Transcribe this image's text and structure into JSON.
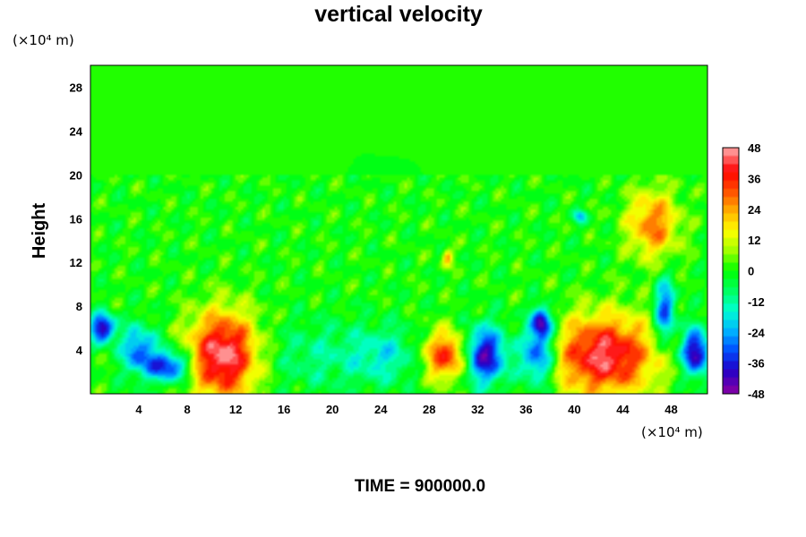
{
  "chart_data": {
    "type": "heatmap",
    "title": "vertical velocity",
    "ylabel": "Height",
    "y_unit_label": "(×10⁴ m)",
    "x_unit_label": "(×10⁴ m)",
    "xticks": [
      "4",
      "8",
      "12",
      "16",
      "20",
      "24",
      "28",
      "32",
      "36",
      "40",
      "44",
      "48"
    ],
    "yticks": [
      "4",
      "8",
      "12",
      "16",
      "20",
      "24",
      "28"
    ],
    "xlim": [
      0,
      51
    ],
    "ylim": [
      0,
      30
    ],
    "colorbar": {
      "ticks": [
        "48",
        "36",
        "24",
        "12",
        "0",
        "-12",
        "-24",
        "-36",
        "-48"
      ],
      "range": [
        -48,
        48
      ],
      "colors_low_to_high": [
        "#7a00a8",
        "#2000c8",
        "#0050ff",
        "#00b8ff",
        "#00ffd0",
        "#00ff60",
        "#00ff00",
        "#a0ff00",
        "#ffff00",
        "#ffb000",
        "#ff5000",
        "#ff0000",
        "#ff9090"
      ]
    },
    "background_value": 0,
    "features": [
      {
        "x": 11,
        "y": 3.5,
        "value": 48,
        "sx": 2.0,
        "sy": 2.8
      },
      {
        "x": 42.5,
        "y": 3.5,
        "value": 44,
        "sx": 3.0,
        "sy": 2.6
      },
      {
        "x": 29.5,
        "y": 3.5,
        "value": 38,
        "sx": 1.4,
        "sy": 1.6
      },
      {
        "x": 32.5,
        "y": 3.5,
        "value": -44,
        "sx": 1.3,
        "sy": 1.8
      },
      {
        "x": 37,
        "y": 3.5,
        "value": -36,
        "sx": 1.0,
        "sy": 1.8
      },
      {
        "x": 37.3,
        "y": 6.5,
        "value": -42,
        "sx": 0.6,
        "sy": 1.0
      },
      {
        "x": 6.5,
        "y": 2.5,
        "value": -38,
        "sx": 1.2,
        "sy": 1.0
      },
      {
        "x": 4,
        "y": 4.0,
        "value": -30,
        "sx": 1.0,
        "sy": 1.5
      },
      {
        "x": 1.0,
        "y": 6.0,
        "value": -44,
        "sx": 0.7,
        "sy": 0.9
      },
      {
        "x": 50.0,
        "y": 3.8,
        "value": -46,
        "sx": 0.8,
        "sy": 1.5
      },
      {
        "x": 47.5,
        "y": 7.5,
        "value": -34,
        "sx": 0.6,
        "sy": 2.0
      },
      {
        "x": 46.5,
        "y": 15.5,
        "value": 28,
        "sx": 1.5,
        "sy": 2.2
      },
      {
        "x": 29.5,
        "y": 12.5,
        "value": 22,
        "sx": 0.3,
        "sy": 0.6
      },
      {
        "x": 40.5,
        "y": 16.2,
        "value": -22,
        "sx": 0.4,
        "sy": 0.4
      },
      {
        "x": 19,
        "y": 3.5,
        "value": -10,
        "sx": 3.5,
        "sy": 2.2
      },
      {
        "x": 24.5,
        "y": 3.5,
        "value": -14,
        "sx": 2.0,
        "sy": 1.8
      }
    ]
  },
  "footer": {
    "time_label": "TIME = 900000.0"
  }
}
